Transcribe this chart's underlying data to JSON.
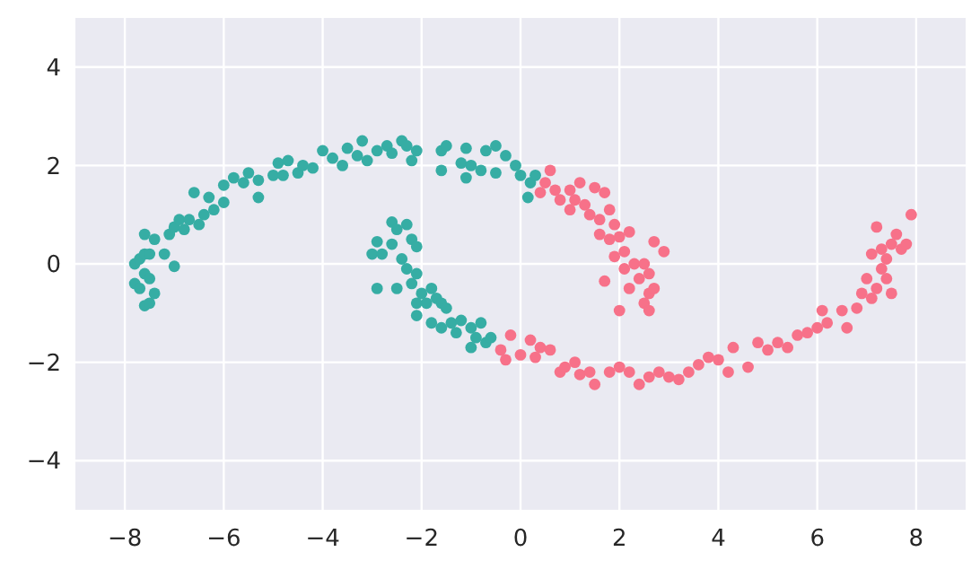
{
  "chart_data": {
    "type": "scatter",
    "xlim": [
      -9,
      9
    ],
    "ylim": [
      -5,
      5
    ],
    "xticks": [
      -8,
      -6,
      -4,
      -2,
      0,
      2,
      4,
      6,
      8
    ],
    "yticks": [
      -4,
      -2,
      0,
      2,
      4
    ],
    "grid": true,
    "marker": "circle",
    "series": [
      {
        "color": "#36ada4",
        "x": [
          -7.8,
          -7.7,
          -7.8,
          -7.7,
          -7.6,
          -7.6,
          -7.5,
          -7.6,
          -7.5,
          -7.4,
          -7.5,
          -7.6,
          -7.4,
          -7.2,
          -7.0,
          -7.1,
          -7.0,
          -6.9,
          -6.8,
          -6.7,
          -6.6,
          -6.5,
          -6.4,
          -6.3,
          -6.2,
          -6.0,
          -6.0,
          -5.8,
          -5.6,
          -5.5,
          -5.3,
          -5.3,
          -5.0,
          -4.9,
          -4.8,
          -4.7,
          -4.5,
          -4.4,
          -4.2,
          -4.0,
          -3.8,
          -3.6,
          -3.5,
          -3.3,
          -3.2,
          -3.1,
          -2.9,
          -2.7,
          -2.6,
          -2.4,
          -2.3,
          -2.2,
          -2.1,
          -1.6,
          -1.5,
          -1.6,
          -1.2,
          -1.1,
          -1.0,
          -1.1,
          -0.8,
          -0.7,
          -0.5,
          -0.5,
          -0.3,
          -0.1,
          0.0,
          0.2,
          0.3,
          0.15,
          -2.6,
          -2.5,
          -2.3,
          -2.9,
          -3.0,
          -2.8,
          -2.6,
          -2.2,
          -2.1,
          -2.4,
          -2.3,
          -2.5,
          -2.9,
          -2.2,
          -2.1,
          -2.0,
          -1.8,
          -2.1,
          -1.9,
          -2.1,
          -1.7,
          -1.6,
          -1.5,
          -1.8,
          -1.6,
          -1.4,
          -1.2,
          -1.3,
          -1.0,
          -0.9,
          -1.0,
          -0.8,
          -0.7,
          -0.6
        ],
        "values": [
          -0.4,
          -0.5,
          0,
          0.1,
          0.2,
          -0.2,
          -0.3,
          -0.85,
          -0.8,
          -0.6,
          0.2,
          0.6,
          0.5,
          0.2,
          -0.05,
          0.6,
          0.75,
          0.9,
          0.7,
          0.9,
          1.45,
          0.8,
          1.0,
          1.35,
          1.1,
          1.25,
          1.6,
          1.75,
          1.65,
          1.85,
          1.35,
          1.7,
          1.8,
          2.05,
          1.8,
          2.1,
          1.85,
          2.0,
          1.95,
          2.3,
          2.15,
          2.0,
          2.35,
          2.2,
          2.5,
          2.1,
          2.3,
          2.4,
          2.25,
          2.5,
          2.4,
          2.1,
          2.3,
          2.3,
          2.4,
          1.9,
          2.05,
          2.35,
          2.0,
          1.75,
          1.9,
          2.3,
          2.4,
          1.85,
          2.2,
          2.0,
          1.8,
          1.65,
          1.8,
          1.35,
          0.85,
          0.7,
          0.8,
          0.45,
          0.2,
          0.2,
          0.4,
          0.5,
          0.35,
          0.1,
          -0.1,
          -0.5,
          -0.5,
          -0.4,
          -0.2,
          -0.6,
          -0.5,
          -0.8,
          -0.8,
          -1.05,
          -0.7,
          -0.8,
          -0.9,
          -1.2,
          -1.3,
          -1.2,
          -1.15,
          -1.4,
          -1.3,
          -1.5,
          -1.7,
          -1.2,
          -1.6,
          -1.5
        ]
      },
      {
        "color": "#f77189",
        "x": [
          0.6,
          0.5,
          0.7,
          0.4,
          0.8,
          1.0,
          1.1,
          1.2,
          1.0,
          1.3,
          1.5,
          1.7,
          1.4,
          1.6,
          1.8,
          1.9,
          1.6,
          1.8,
          2.0,
          2.1,
          2.2,
          1.9,
          2.1,
          2.3,
          2.5,
          2.6,
          2.4,
          2.2,
          2.6,
          2.7,
          1.7,
          2.0,
          2.5,
          2.6,
          2.9,
          2.7,
          -0.4,
          -0.3,
          -0.2,
          0.0,
          0.2,
          0.3,
          0.4,
          0.6,
          0.8,
          0.9,
          1.1,
          1.2,
          1.4,
          1.5,
          1.8,
          2.0,
          2.2,
          2.4,
          2.6,
          2.8,
          3.0,
          3.2,
          3.4,
          3.6,
          3.8,
          4.0,
          4.2,
          4.3,
          4.6,
          4.8,
          5.0,
          5.2,
          5.4,
          5.6,
          5.8,
          6.0,
          6.1,
          6.2,
          6.5,
          6.6,
          6.8,
          6.9,
          7.1,
          7.0,
          7.2,
          7.3,
          7.1,
          7.3,
          7.4,
          7.5,
          7.2,
          7.6,
          7.7,
          7.8,
          7.9,
          7.4,
          7.5
        ],
        "values": [
          1.9,
          1.65,
          1.5,
          1.45,
          1.3,
          1.5,
          1.3,
          1.65,
          1.1,
          1.2,
          1.55,
          1.45,
          1.0,
          0.9,
          1.1,
          0.8,
          0.6,
          0.5,
          0.55,
          0.25,
          0.65,
          0.15,
          -0.1,
          0.0,
          0.0,
          -0.2,
          -0.3,
          -0.5,
          -0.6,
          -0.5,
          -0.35,
          -0.95,
          -0.8,
          -0.95,
          0.25,
          0.45,
          -1.75,
          -1.95,
          -1.45,
          -1.85,
          -1.55,
          -1.9,
          -1.7,
          -1.75,
          -2.2,
          -2.1,
          -2.0,
          -2.25,
          -2.2,
          -2.45,
          -2.2,
          -2.1,
          -2.2,
          -2.45,
          -2.3,
          -2.2,
          -2.3,
          -2.35,
          -2.2,
          -2.05,
          -1.9,
          -1.95,
          -2.2,
          -1.7,
          -2.1,
          -1.6,
          -1.75,
          -1.6,
          -1.7,
          -1.45,
          -1.4,
          -1.3,
          -0.95,
          -1.2,
          -0.95,
          -1.3,
          -0.9,
          -0.6,
          -0.7,
          -0.3,
          -0.5,
          -0.1,
          0.2,
          0.3,
          0.1,
          0.4,
          0.75,
          0.6,
          0.3,
          0.4,
          1.0,
          -0.3,
          -0.6
        ]
      }
    ]
  }
}
